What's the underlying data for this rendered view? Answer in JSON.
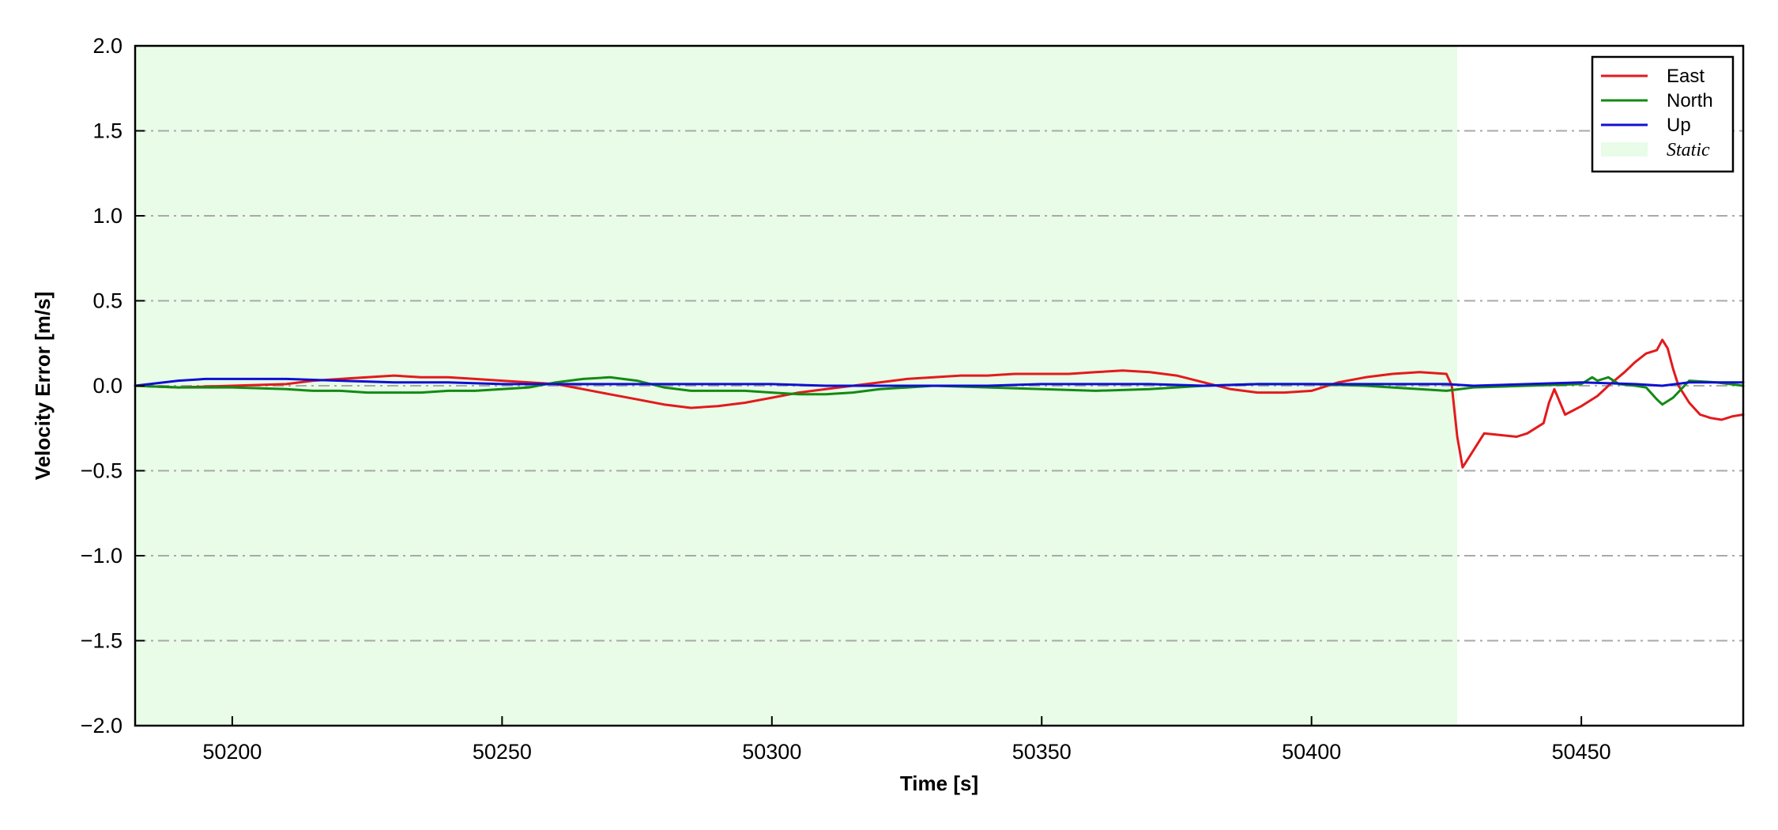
{
  "chart_data": {
    "type": "line",
    "title": "",
    "xlabel": "Time [s]",
    "ylabel": "Velocity Error [m/s]",
    "xlim": [
      50182,
      50480
    ],
    "ylim": [
      -2.0,
      2.0
    ],
    "xticks": [
      50200,
      50250,
      50300,
      50350,
      50400,
      50450
    ],
    "xtick_labels": [
      "50200",
      "50250",
      "50300",
      "50350",
      "50400",
      "50450"
    ],
    "yticks": [
      2.0,
      1.5,
      1.0,
      0.5,
      0.0,
      -0.5,
      -1.0,
      -1.5,
      -2.0
    ],
    "ytick_labels": [
      "2.0",
      "1.5",
      "1.0",
      "0.5",
      "0.0",
      "−0.5",
      "−1.0",
      "−1.5",
      "−2.0"
    ],
    "grid": "horizontal dash-dot",
    "legend_position": "top-right",
    "static_region": {
      "label": "Static",
      "x_start": 50182,
      "x_end": 50427,
      "color": "#e8fce8"
    },
    "series": [
      {
        "name": "East",
        "color": "#e31a1c",
        "x": [
          50182,
          50190,
          50200,
          50210,
          50215,
          50220,
          50225,
          50230,
          50235,
          50240,
          50245,
          50250,
          50255,
          50260,
          50265,
          50270,
          50275,
          50280,
          50285,
          50290,
          50295,
          50300,
          50305,
          50310,
          50315,
          50320,
          50325,
          50330,
          50335,
          50340,
          50345,
          50350,
          50355,
          50360,
          50365,
          50370,
          50375,
          50380,
          50385,
          50390,
          50395,
          50400,
          50405,
          50410,
          50415,
          50420,
          50425,
          50426,
          50427,
          50428,
          50430,
          50432,
          50435,
          50438,
          50440,
          50443,
          50444,
          50445,
          50447,
          50450,
          50453,
          50455,
          50458,
          50460,
          50462,
          50464,
          50465,
          50466,
          50467,
          50468,
          50470,
          50472,
          50474,
          50476,
          50478,
          50480
        ],
        "y": [
          0.0,
          -0.01,
          0.0,
          0.01,
          0.03,
          0.04,
          0.05,
          0.06,
          0.05,
          0.05,
          0.04,
          0.03,
          0.02,
          0.01,
          -0.02,
          -0.05,
          -0.08,
          -0.11,
          -0.13,
          -0.12,
          -0.1,
          -0.07,
          -0.04,
          -0.02,
          0.0,
          0.02,
          0.04,
          0.05,
          0.06,
          0.06,
          0.07,
          0.07,
          0.07,
          0.08,
          0.09,
          0.08,
          0.06,
          0.02,
          -0.02,
          -0.04,
          -0.04,
          -0.03,
          0.02,
          0.05,
          0.07,
          0.08,
          0.07,
          0.0,
          -0.3,
          -0.48,
          -0.38,
          -0.28,
          -0.29,
          -0.3,
          -0.28,
          -0.22,
          -0.1,
          -0.02,
          -0.17,
          -0.12,
          -0.06,
          0.0,
          0.08,
          0.14,
          0.19,
          0.21,
          0.27,
          0.22,
          0.1,
          0.0,
          -0.1,
          -0.17,
          -0.19,
          -0.2,
          -0.18,
          -0.17
        ]
      },
      {
        "name": "North",
        "color": "#138a13",
        "x": [
          50182,
          50190,
          50200,
          50210,
          50215,
          50220,
          50225,
          50230,
          50235,
          50240,
          50245,
          50250,
          50255,
          50260,
          50265,
          50270,
          50275,
          50280,
          50285,
          50290,
          50295,
          50300,
          50305,
          50310,
          50315,
          50320,
          50330,
          50340,
          50350,
          50360,
          50370,
          50380,
          50390,
          50400,
          50410,
          50420,
          50425,
          50430,
          50440,
          50450,
          50452,
          50453,
          50455,
          50457,
          50460,
          50462,
          50464,
          50465,
          50467,
          50470,
          50475,
          50480
        ],
        "y": [
          0.0,
          -0.01,
          -0.01,
          -0.02,
          -0.03,
          -0.03,
          -0.04,
          -0.04,
          -0.04,
          -0.03,
          -0.03,
          -0.02,
          -0.01,
          0.02,
          0.04,
          0.05,
          0.03,
          -0.01,
          -0.03,
          -0.03,
          -0.03,
          -0.04,
          -0.05,
          -0.05,
          -0.04,
          -0.02,
          0.0,
          -0.01,
          -0.02,
          -0.03,
          -0.02,
          0.0,
          0.01,
          0.01,
          0.0,
          -0.02,
          -0.03,
          -0.01,
          0.0,
          0.01,
          0.05,
          0.03,
          0.05,
          0.01,
          0.0,
          -0.01,
          -0.08,
          -0.11,
          -0.07,
          0.03,
          0.02,
          0.0
        ]
      },
      {
        "name": "Up",
        "color": "#1010d0",
        "x": [
          50182,
          50190,
          50195,
          50200,
          50210,
          50220,
          50230,
          50240,
          50250,
          50260,
          50270,
          50280,
          50290,
          50300,
          50310,
          50320,
          50330,
          50340,
          50350,
          50360,
          50370,
          50380,
          50390,
          50400,
          50410,
          50420,
          50425,
          50430,
          50440,
          50450,
          50460,
          50465,
          50470,
          50475,
          50480
        ],
        "y": [
          0.0,
          0.03,
          0.04,
          0.04,
          0.04,
          0.03,
          0.02,
          0.02,
          0.01,
          0.01,
          0.01,
          0.01,
          0.01,
          0.01,
          0.0,
          0.0,
          0.0,
          0.0,
          0.01,
          0.01,
          0.01,
          0.0,
          0.01,
          0.01,
          0.01,
          0.01,
          0.01,
          0.0,
          0.01,
          0.02,
          0.01,
          0.0,
          0.02,
          0.02,
          0.02
        ]
      }
    ]
  }
}
